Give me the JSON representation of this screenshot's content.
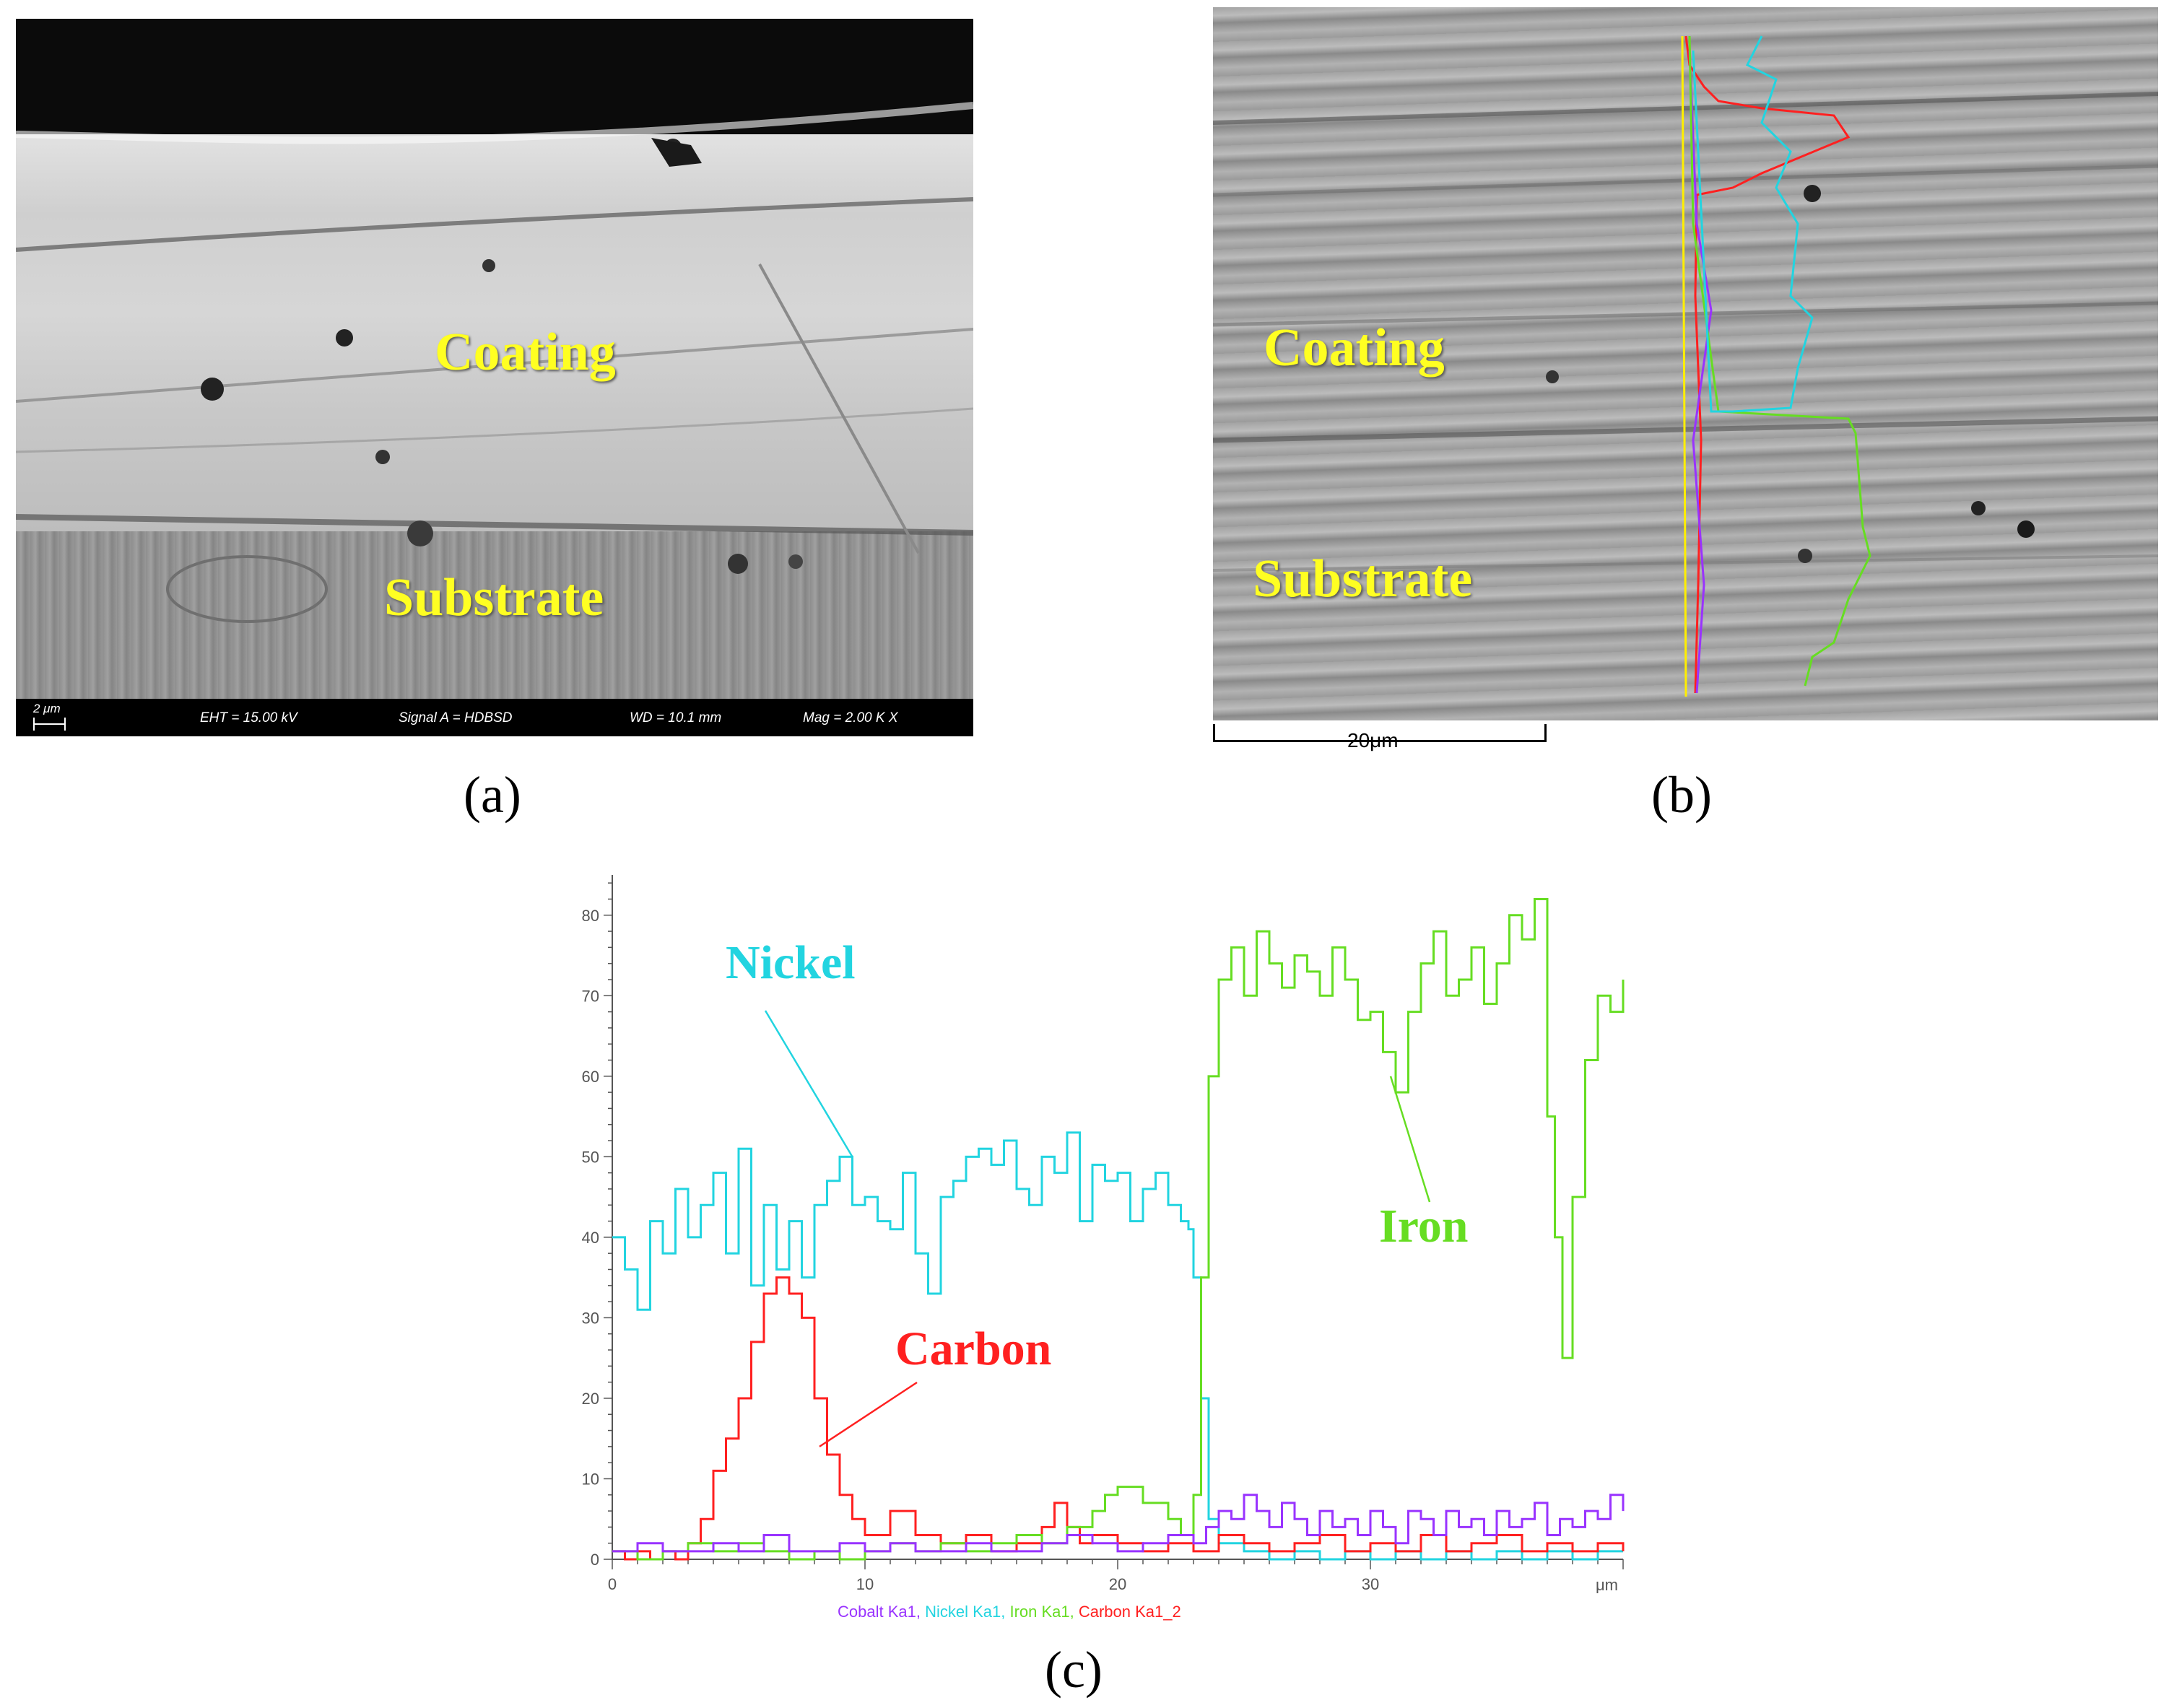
{
  "panels": {
    "a": {
      "caption": "(a)",
      "labels": {
        "coating": "Coating",
        "substrate": "Substrate"
      },
      "info_bar": {
        "scale": "2 μm",
        "eht": "EHT = 15.00 kV",
        "signal": "Signal A = HDBSD",
        "wd": "WD = 10.1 mm",
        "mag": "Mag =   2.00 K X"
      }
    },
    "b": {
      "caption": "(b)",
      "labels": {
        "coating": "Coating",
        "substrate": "Substrate"
      },
      "scale_bar": "20μm"
    },
    "c": {
      "caption": "(c)"
    }
  },
  "colors": {
    "cobalt": "#9933ff",
    "nickel": "#22d4e0",
    "iron": "#66dd22",
    "carbon": "#ff2020",
    "label_yellow": "#ffff22"
  },
  "chart_data": {
    "type": "line",
    "title": "",
    "xlabel": "μm",
    "ylabel": "",
    "xlim": [
      0,
      40
    ],
    "ylim": [
      0,
      85
    ],
    "x_ticks": [
      0,
      10,
      20,
      30
    ],
    "y_ticks": [
      0,
      10,
      20,
      30,
      40,
      50,
      60,
      70,
      80
    ],
    "legend_text": [
      {
        "text": "Cobalt Ka1",
        "series": "cobalt"
      },
      {
        "text": "Nickel Ka1",
        "series": "nickel"
      },
      {
        "text": "Iron Ka1",
        "series": "iron"
      },
      {
        "text": "Carbon Ka1_2",
        "series": "carbon"
      }
    ],
    "legend_placement": "bottom",
    "annotations": [
      {
        "text": "Nickel",
        "series": "nickel"
      },
      {
        "text": "Carbon",
        "series": "carbon"
      },
      {
        "text": "Iron",
        "series": "iron"
      }
    ],
    "series": [
      {
        "key": "nickel",
        "color": "#22d4e0",
        "x": [
          0,
          0.5,
          1,
          1.5,
          2,
          2.5,
          3,
          3.5,
          4,
          4.5,
          5,
          5.5,
          6,
          6.5,
          7,
          7.5,
          8,
          8.5,
          9,
          9.5,
          10,
          10.5,
          11,
          11.5,
          12,
          12.5,
          13,
          13.5,
          14,
          14.5,
          15,
          15.5,
          16,
          16.5,
          17,
          17.5,
          18,
          18.5,
          19,
          19.5,
          20,
          20.5,
          21,
          21.5,
          22,
          22.5,
          22.8,
          23,
          23.3,
          23.6,
          24,
          25,
          26,
          27,
          28,
          29,
          30,
          31,
          32,
          33,
          34,
          35,
          36,
          37,
          38,
          39,
          40
        ],
        "y": [
          40,
          36,
          31,
          42,
          38,
          46,
          40,
          44,
          48,
          38,
          51,
          34,
          44,
          36,
          42,
          35,
          44,
          47,
          50,
          44,
          45,
          42,
          41,
          48,
          38,
          33,
          45,
          47,
          50,
          51,
          49,
          52,
          46,
          44,
          50,
          48,
          53,
          42,
          49,
          47,
          48,
          42,
          46,
          48,
          44,
          42,
          41,
          35,
          20,
          5,
          2,
          1,
          0,
          1,
          0,
          1,
          0,
          1,
          0,
          1,
          0,
          1,
          0,
          1,
          0,
          1,
          1
        ]
      },
      {
        "key": "carbon",
        "color": "#ff2020",
        "x": [
          0,
          0.5,
          1,
          1.5,
          2,
          2.5,
          3,
          3.5,
          4,
          4.5,
          5,
          5.5,
          6,
          6.5,
          7,
          7.5,
          8,
          8.5,
          9,
          9.5,
          10,
          11,
          12,
          13,
          14,
          15,
          16,
          17,
          17.5,
          18,
          18.5,
          19,
          20,
          21,
          22,
          23,
          24,
          25,
          26,
          27,
          28,
          29,
          30,
          31,
          32,
          33,
          34,
          35,
          36,
          37,
          38,
          39,
          40
        ],
        "y": [
          1,
          0,
          1,
          0,
          1,
          0,
          2,
          5,
          11,
          15,
          20,
          27,
          33,
          35,
          33,
          30,
          20,
          13,
          8,
          5,
          3,
          6,
          3,
          2,
          3,
          1,
          2,
          4,
          7,
          4,
          2,
          3,
          2,
          1,
          2,
          1,
          3,
          2,
          1,
          2,
          3,
          1,
          2,
          1,
          3,
          1,
          2,
          3,
          1,
          2,
          1,
          2,
          1
        ]
      },
      {
        "key": "iron",
        "color": "#66dd22",
        "x": [
          0,
          1,
          2,
          3,
          4,
          5,
          6,
          7,
          8,
          9,
          10,
          11,
          12,
          13,
          14,
          15,
          16,
          17,
          18,
          19,
          19.5,
          20,
          21,
          22,
          22.5,
          23,
          23.3,
          23.6,
          24,
          24.5,
          25,
          25.5,
          26,
          26.5,
          27,
          27.5,
          28,
          28.5,
          29,
          29.5,
          30,
          30.5,
          31,
          31.5,
          32,
          32.5,
          33,
          33.5,
          34,
          34.5,
          35,
          35.5,
          36,
          36.5,
          37,
          37.3,
          37.6,
          38,
          38.5,
          39,
          39.5,
          40
        ],
        "y": [
          1,
          0,
          1,
          2,
          1,
          2,
          1,
          0,
          1,
          0,
          1,
          2,
          1,
          2,
          1,
          2,
          3,
          2,
          4,
          6,
          8,
          9,
          7,
          5,
          3,
          8,
          35,
          60,
          72,
          76,
          70,
          78,
          74,
          71,
          75,
          73,
          70,
          76,
          72,
          67,
          68,
          63,
          58,
          68,
          74,
          78,
          70,
          72,
          76,
          69,
          74,
          80,
          77,
          82,
          55,
          40,
          25,
          45,
          62,
          70,
          68,
          72
        ]
      },
      {
        "key": "cobalt",
        "color": "#9933ff",
        "x": [
          0,
          1,
          2,
          3,
          4,
          5,
          6,
          7,
          8,
          9,
          10,
          11,
          12,
          13,
          14,
          15,
          16,
          17,
          18,
          19,
          20,
          21,
          22,
          23,
          23.5,
          24,
          24.5,
          25,
          25.5,
          26,
          26.5,
          27,
          27.5,
          28,
          28.5,
          29,
          29.5,
          30,
          30.5,
          31,
          31.5,
          32,
          32.5,
          33,
          33.5,
          34,
          34.5,
          35,
          35.5,
          36,
          36.5,
          37,
          37.5,
          38,
          38.5,
          39,
          39.5,
          40
        ],
        "y": [
          1,
          2,
          1,
          1,
          2,
          1,
          3,
          1,
          1,
          2,
          1,
          2,
          1,
          1,
          2,
          1,
          1,
          2,
          3,
          2,
          1,
          2,
          3,
          2,
          4,
          6,
          5,
          8,
          6,
          4,
          7,
          5,
          3,
          6,
          4,
          5,
          3,
          6,
          4,
          2,
          6,
          5,
          3,
          6,
          4,
          5,
          3,
          6,
          4,
          5,
          7,
          3,
          5,
          4,
          6,
          5,
          8,
          6
        ]
      }
    ]
  }
}
